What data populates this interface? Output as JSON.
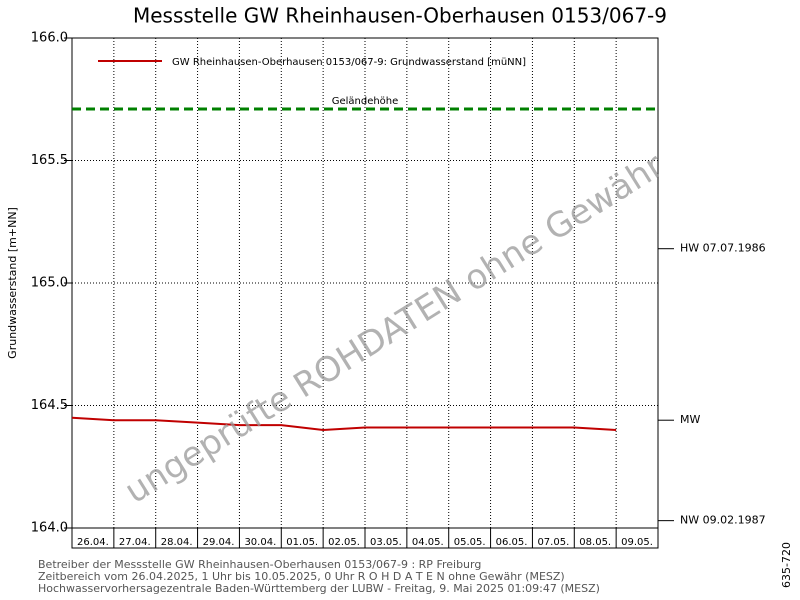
{
  "chart_data": {
    "type": "line",
    "title": "Messstelle GW Rheinhausen-Oberhausen 0153/067-9",
    "y_label": "Grundwasserstand [m+NN]",
    "categories": [
      "26.04.",
      "27.04.",
      "28.04.",
      "29.04.",
      "30.04.",
      "01.05.",
      "02.05.",
      "03.05.",
      "04.05.",
      "05.05.",
      "06.05.",
      "07.05.",
      "08.05.",
      "09.05."
    ],
    "series": [
      {
        "name": "GW Rheinhausen-Oberhausen 0153/067-9: Grundwasserstand  [müNN]",
        "color": "#c00000",
        "values": [
          164.45,
          164.44,
          164.44,
          164.43,
          164.42,
          164.42,
          164.4,
          164.41,
          164.41,
          164.41,
          164.41,
          164.41,
          164.41,
          164.4
        ]
      }
    ],
    "reference_line": {
      "label": "Geländehöhe",
      "value": 165.71,
      "color": "#008000"
    },
    "markers": [
      {
        "label": "HW 07.07.1986",
        "value": 165.14
      },
      {
        "label": "MW",
        "value": 164.44
      },
      {
        "label": "NW 09.02.1987",
        "value": 164.03
      }
    ],
    "ylim": [
      164.0,
      166.0
    ],
    "yticks": [
      {
        "value": 164,
        "label": "164.0"
      },
      164.5,
      {
        "value": 165,
        "label": "165.0"
      },
      165.5,
      {
        "value": 166,
        "label": "166.0"
      }
    ],
    "grid": true,
    "watermark": "ungeprüfte ROHDATEN ohne Gewähr",
    "side_label": "635-720",
    "footer": [
      "Betreiber der Messstelle GW Rheinhausen-Oberhausen 0153/067-9 : RP Freiburg",
      "Zeitbereich vom 26.04.2025, 1 Uhr bis 10.05.2025, 0 Uhr   R O H D A T E N ohne Gewähr (MESZ)",
      "Hochwasservorhersagezentrale Baden-Württemberg der LUBW - Freitag, 9. Mai 2025 01:09:47 (MESZ)"
    ]
  }
}
